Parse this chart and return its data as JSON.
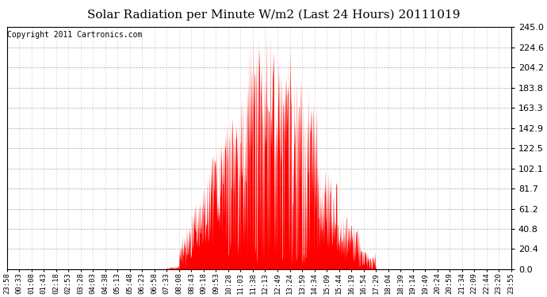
{
  "title": "Solar Radiation per Minute W/m2 (Last 24 Hours) 20111019",
  "copyright": "Copyright 2011 Cartronics.com",
  "ymin": 0.0,
  "ymax": 245.0,
  "yticks": [
    0.0,
    20.4,
    40.8,
    61.2,
    81.7,
    102.1,
    122.5,
    142.9,
    163.3,
    183.8,
    204.2,
    224.6,
    245.0
  ],
  "xtick_labels": [
    "23:58",
    "00:33",
    "01:08",
    "01:43",
    "02:18",
    "02:53",
    "03:28",
    "04:03",
    "04:38",
    "05:13",
    "05:48",
    "06:23",
    "06:58",
    "07:33",
    "08:08",
    "08:43",
    "09:18",
    "09:53",
    "10:28",
    "11:03",
    "11:38",
    "12:13",
    "12:49",
    "13:24",
    "13:59",
    "14:34",
    "15:09",
    "15:44",
    "16:19",
    "16:54",
    "17:29",
    "18:04",
    "18:39",
    "19:14",
    "19:49",
    "20:24",
    "20:59",
    "21:34",
    "22:09",
    "22:44",
    "23:20",
    "23:55"
  ],
  "bar_color": "#FF0000",
  "background_color": "#FFFFFF",
  "grid_color": "#AAAAAA",
  "title_fontsize": 11,
  "copyright_fontsize": 7,
  "ylabel_fontsize": 8,
  "xlabel_fontsize": 6.5
}
